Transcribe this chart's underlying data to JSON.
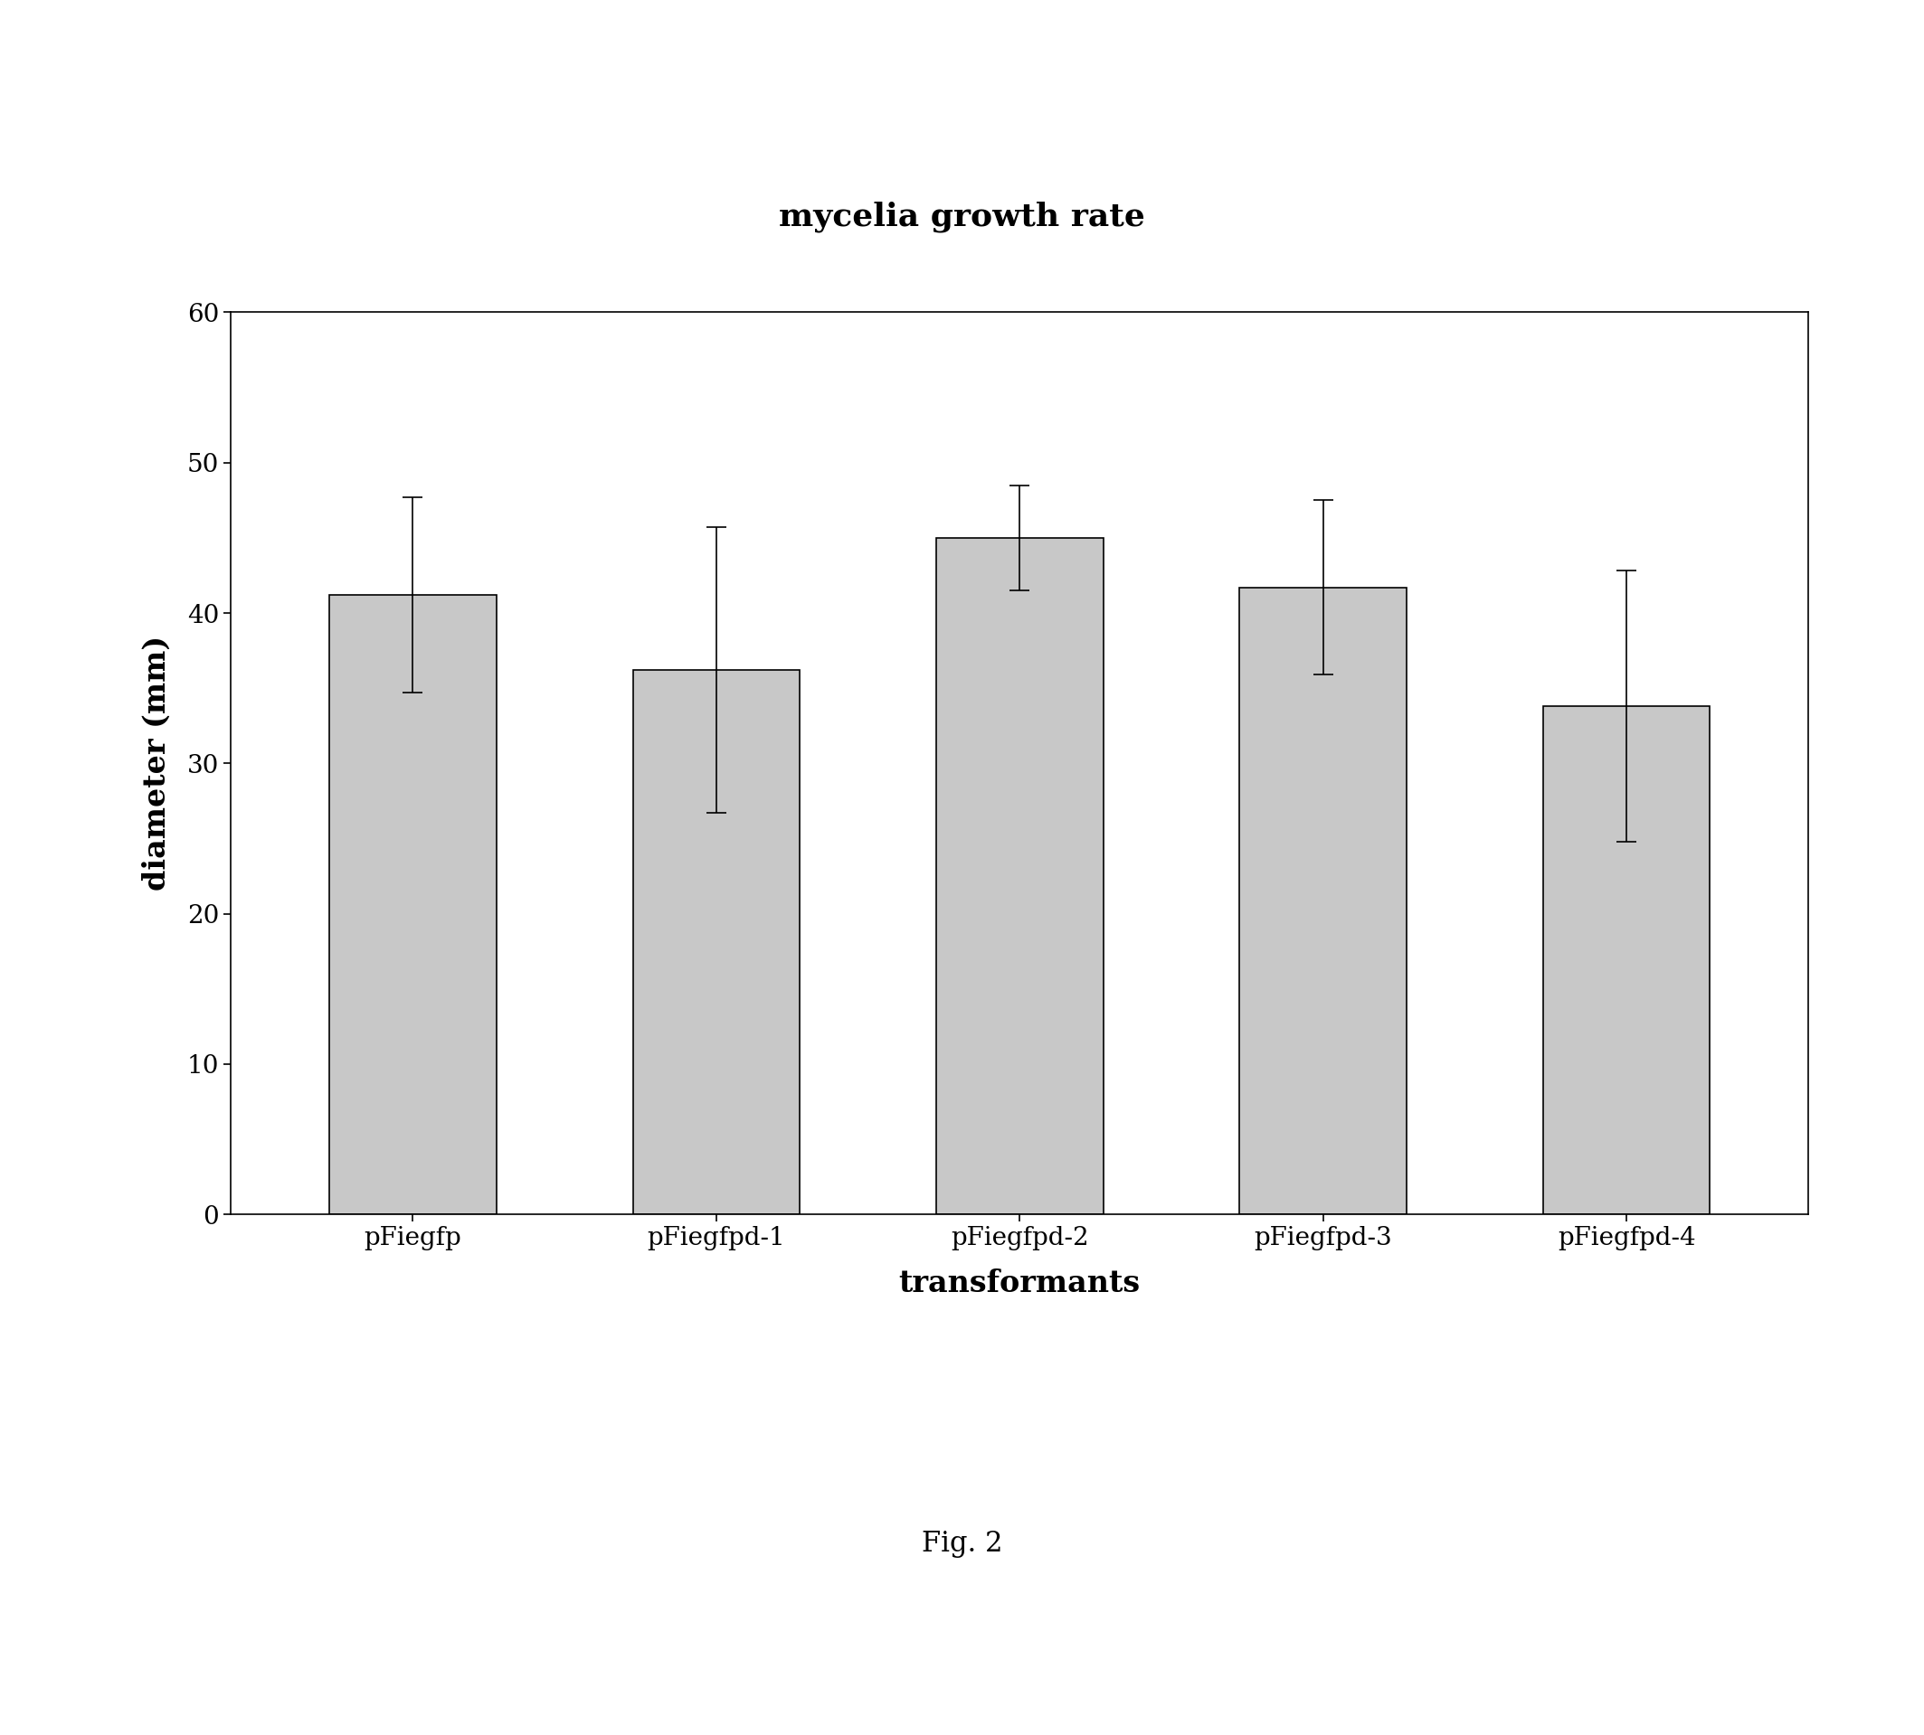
{
  "title": "mycelia growth rate",
  "xlabel": "transformants",
  "ylabel": "diameter (mm)",
  "categories": [
    "pFiegfp",
    "pFiegfpd-1",
    "pFiegfpd-2",
    "pFiegfpd-3",
    "pFiegfpd-4"
  ],
  "values": [
    41.2,
    36.2,
    45.0,
    41.7,
    33.8
  ],
  "errors": [
    6.5,
    9.5,
    3.5,
    5.8,
    9.0
  ],
  "bar_color": "#c8c8c8",
  "bar_edgecolor": "#000000",
  "ylim": [
    0,
    60
  ],
  "yticks": [
    0,
    10,
    20,
    30,
    40,
    50,
    60
  ],
  "fig_caption": "Fig. 2",
  "title_fontsize": 26,
  "label_fontsize": 24,
  "tick_fontsize": 20,
  "caption_fontsize": 22,
  "bar_width": 0.55,
  "background_color": "#ffffff"
}
